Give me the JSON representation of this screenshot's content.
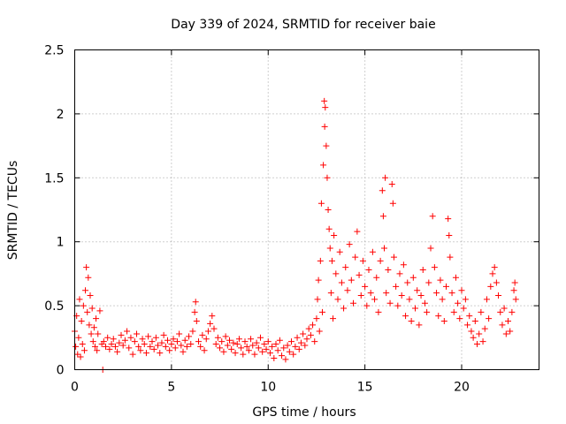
{
  "chart_data": {
    "type": "scatter",
    "title": "Day 339 of 2024, SRMTID for receiver baie",
    "xlabel": "GPS time / hours",
    "ylabel": "SRMTID / TECUs",
    "xlim": [
      0,
      24
    ],
    "ylim": [
      0,
      2.5
    ],
    "xticks": [
      0,
      5,
      10,
      15,
      20
    ],
    "yticks": [
      0,
      0.5,
      1,
      1.5,
      2,
      2.5
    ],
    "xtick_labels": [
      "0",
      "5",
      "10",
      "15",
      "20"
    ],
    "ytick_labels": [
      "0",
      "0.5",
      "1",
      "1.5",
      "2",
      "2.5"
    ],
    "grid": true,
    "marker": "+",
    "series": [
      {
        "name": "SRMTID",
        "color": "#ff0000",
        "points": [
          [
            0.0,
            0.3
          ],
          [
            0.05,
            0.18
          ],
          [
            0.1,
            0.42
          ],
          [
            0.15,
            0.12
          ],
          [
            0.2,
            0.25
          ],
          [
            0.25,
            0.55
          ],
          [
            0.3,
            0.1
          ],
          [
            0.35,
            0.38
          ],
          [
            0.4,
            0.2
          ],
          [
            0.45,
            0.5
          ],
          [
            0.5,
            0.15
          ],
          [
            0.55,
            0.62
          ],
          [
            0.6,
            0.8
          ],
          [
            0.65,
            0.45
          ],
          [
            0.7,
            0.72
          ],
          [
            0.75,
            0.35
          ],
          [
            0.8,
            0.58
          ],
          [
            0.85,
            0.28
          ],
          [
            0.9,
            0.48
          ],
          [
            0.95,
            0.22
          ],
          [
            1.0,
            0.33
          ],
          [
            1.05,
            0.18
          ],
          [
            1.1,
            0.4
          ],
          [
            1.15,
            0.15
          ],
          [
            1.2,
            0.28
          ],
          [
            1.3,
            0.46
          ],
          [
            1.4,
            0.2
          ],
          [
            1.45,
            0.0
          ],
          [
            1.5,
            0.22
          ],
          [
            1.6,
            0.18
          ],
          [
            1.7,
            0.25
          ],
          [
            1.8,
            0.16
          ],
          [
            1.9,
            0.2
          ],
          [
            2.0,
            0.24
          ],
          [
            2.1,
            0.18
          ],
          [
            2.2,
            0.14
          ],
          [
            2.3,
            0.21
          ],
          [
            2.4,
            0.27
          ],
          [
            2.5,
            0.19
          ],
          [
            2.6,
            0.23
          ],
          [
            2.7,
            0.3
          ],
          [
            2.8,
            0.17
          ],
          [
            2.9,
            0.25
          ],
          [
            3.0,
            0.12
          ],
          [
            3.1,
            0.22
          ],
          [
            3.2,
            0.28
          ],
          [
            3.3,
            0.18
          ],
          [
            3.4,
            0.15
          ],
          [
            3.5,
            0.24
          ],
          [
            3.6,
            0.2
          ],
          [
            3.7,
            0.13
          ],
          [
            3.8,
            0.26
          ],
          [
            3.9,
            0.18
          ],
          [
            4.0,
            0.22
          ],
          [
            4.1,
            0.16
          ],
          [
            4.2,
            0.25
          ],
          [
            4.3,
            0.19
          ],
          [
            4.4,
            0.13
          ],
          [
            4.5,
            0.21
          ],
          [
            4.6,
            0.27
          ],
          [
            4.7,
            0.18
          ],
          [
            4.8,
            0.23
          ],
          [
            4.9,
            0.15
          ],
          [
            5.0,
            0.2
          ],
          [
            5.1,
            0.24
          ],
          [
            5.2,
            0.17
          ],
          [
            5.3,
            0.22
          ],
          [
            5.4,
            0.28
          ],
          [
            5.5,
            0.19
          ],
          [
            5.6,
            0.14
          ],
          [
            5.7,
            0.23
          ],
          [
            5.8,
            0.18
          ],
          [
            5.9,
            0.26
          ],
          [
            6.0,
            0.2
          ],
          [
            6.1,
            0.3
          ],
          [
            6.2,
            0.45
          ],
          [
            6.25,
            0.53
          ],
          [
            6.3,
            0.38
          ],
          [
            6.4,
            0.22
          ],
          [
            6.5,
            0.18
          ],
          [
            6.6,
            0.27
          ],
          [
            6.7,
            0.15
          ],
          [
            6.8,
            0.24
          ],
          [
            6.9,
            0.3
          ],
          [
            7.0,
            0.36
          ],
          [
            7.1,
            0.42
          ],
          [
            7.2,
            0.32
          ],
          [
            7.3,
            0.2
          ],
          [
            7.4,
            0.25
          ],
          [
            7.5,
            0.17
          ],
          [
            7.6,
            0.22
          ],
          [
            7.7,
            0.14
          ],
          [
            7.8,
            0.26
          ],
          [
            7.9,
            0.19
          ],
          [
            8.0,
            0.23
          ],
          [
            8.1,
            0.16
          ],
          [
            8.2,
            0.21
          ],
          [
            8.3,
            0.13
          ],
          [
            8.4,
            0.2
          ],
          [
            8.5,
            0.24
          ],
          [
            8.6,
            0.17
          ],
          [
            8.7,
            0.12
          ],
          [
            8.8,
            0.22
          ],
          [
            8.9,
            0.18
          ],
          [
            9.0,
            0.15
          ],
          [
            9.1,
            0.24
          ],
          [
            9.2,
            0.19
          ],
          [
            9.3,
            0.12
          ],
          [
            9.4,
            0.21
          ],
          [
            9.5,
            0.17
          ],
          [
            9.6,
            0.25
          ],
          [
            9.7,
            0.14
          ],
          [
            9.8,
            0.2
          ],
          [
            9.9,
            0.16
          ],
          [
            10.0,
            0.22
          ],
          [
            10.1,
            0.13
          ],
          [
            10.2,
            0.18
          ],
          [
            10.3,
            0.09
          ],
          [
            10.4,
            0.2
          ],
          [
            10.5,
            0.15
          ],
          [
            10.6,
            0.23
          ],
          [
            10.7,
            0.11
          ],
          [
            10.8,
            0.17
          ],
          [
            10.9,
            0.08
          ],
          [
            11.0,
            0.19
          ],
          [
            11.1,
            0.14
          ],
          [
            11.2,
            0.22
          ],
          [
            11.3,
            0.12
          ],
          [
            11.4,
            0.18
          ],
          [
            11.5,
            0.25
          ],
          [
            11.6,
            0.16
          ],
          [
            11.7,
            0.21
          ],
          [
            11.8,
            0.28
          ],
          [
            11.9,
            0.19
          ],
          [
            12.0,
            0.24
          ],
          [
            12.1,
            0.32
          ],
          [
            12.2,
            0.27
          ],
          [
            12.3,
            0.35
          ],
          [
            12.4,
            0.22
          ],
          [
            12.5,
            0.4
          ],
          [
            12.55,
            0.55
          ],
          [
            12.6,
            0.7
          ],
          [
            12.65,
            0.3
          ],
          [
            12.7,
            0.85
          ],
          [
            12.75,
            1.3
          ],
          [
            12.8,
            0.45
          ],
          [
            12.85,
            1.6
          ],
          [
            12.9,
            2.1
          ],
          [
            12.92,
            1.9
          ],
          [
            12.95,
            2.05
          ],
          [
            13.0,
            1.75
          ],
          [
            13.05,
            1.5
          ],
          [
            13.1,
            1.25
          ],
          [
            13.15,
            1.1
          ],
          [
            13.2,
            0.95
          ],
          [
            13.25,
            0.6
          ],
          [
            13.3,
            0.85
          ],
          [
            13.35,
            0.4
          ],
          [
            13.4,
            1.05
          ],
          [
            13.5,
            0.75
          ],
          [
            13.6,
            0.55
          ],
          [
            13.7,
            0.92
          ],
          [
            13.8,
            0.68
          ],
          [
            13.9,
            0.48
          ],
          [
            14.0,
            0.8
          ],
          [
            14.1,
            0.62
          ],
          [
            14.2,
            0.98
          ],
          [
            14.3,
            0.7
          ],
          [
            14.4,
            0.52
          ],
          [
            14.5,
            0.88
          ],
          [
            14.6,
            1.08
          ],
          [
            14.7,
            0.74
          ],
          [
            14.8,
            0.58
          ],
          [
            14.9,
            0.85
          ],
          [
            15.0,
            0.65
          ],
          [
            15.1,
            0.5
          ],
          [
            15.2,
            0.78
          ],
          [
            15.3,
            0.6
          ],
          [
            15.4,
            0.92
          ],
          [
            15.5,
            0.55
          ],
          [
            15.6,
            0.72
          ],
          [
            15.7,
            0.45
          ],
          [
            15.8,
            0.85
          ],
          [
            15.9,
            1.4
          ],
          [
            15.95,
            1.2
          ],
          [
            16.0,
            0.95
          ],
          [
            16.05,
            1.5
          ],
          [
            16.1,
            0.6
          ],
          [
            16.2,
            0.78
          ],
          [
            16.3,
            0.52
          ],
          [
            16.4,
            1.45
          ],
          [
            16.45,
            1.3
          ],
          [
            16.5,
            0.88
          ],
          [
            16.6,
            0.65
          ],
          [
            16.7,
            0.5
          ],
          [
            16.8,
            0.75
          ],
          [
            16.9,
            0.58
          ],
          [
            17.0,
            0.82
          ],
          [
            17.1,
            0.42
          ],
          [
            17.2,
            0.68
          ],
          [
            17.3,
            0.55
          ],
          [
            17.4,
            0.38
          ],
          [
            17.5,
            0.72
          ],
          [
            17.6,
            0.48
          ],
          [
            17.7,
            0.62
          ],
          [
            17.8,
            0.35
          ],
          [
            17.9,
            0.58
          ],
          [
            18.0,
            0.78
          ],
          [
            18.1,
            0.52
          ],
          [
            18.2,
            0.45
          ],
          [
            18.3,
            0.68
          ],
          [
            18.4,
            0.95
          ],
          [
            18.5,
            1.2
          ],
          [
            18.6,
            0.8
          ],
          [
            18.7,
            0.6
          ],
          [
            18.8,
            0.42
          ],
          [
            18.9,
            0.7
          ],
          [
            19.0,
            0.55
          ],
          [
            19.1,
            0.38
          ],
          [
            19.2,
            0.65
          ],
          [
            19.3,
            1.18
          ],
          [
            19.35,
            1.05
          ],
          [
            19.4,
            0.88
          ],
          [
            19.5,
            0.6
          ],
          [
            19.6,
            0.45
          ],
          [
            19.7,
            0.72
          ],
          [
            19.8,
            0.52
          ],
          [
            19.9,
            0.4
          ],
          [
            20.0,
            0.62
          ],
          [
            20.1,
            0.48
          ],
          [
            20.2,
            0.55
          ],
          [
            20.3,
            0.35
          ],
          [
            20.4,
            0.42
          ],
          [
            20.5,
            0.3
          ],
          [
            20.6,
            0.25
          ],
          [
            20.7,
            0.38
          ],
          [
            20.8,
            0.2
          ],
          [
            20.9,
            0.28
          ],
          [
            21.0,
            0.45
          ],
          [
            21.1,
            0.22
          ],
          [
            21.2,
            0.32
          ],
          [
            21.3,
            0.55
          ],
          [
            21.4,
            0.4
          ],
          [
            21.5,
            0.65
          ],
          [
            21.6,
            0.75
          ],
          [
            21.7,
            0.8
          ],
          [
            21.8,
            0.68
          ],
          [
            21.9,
            0.58
          ],
          [
            22.0,
            0.45
          ],
          [
            22.1,
            0.35
          ],
          [
            22.2,
            0.48
          ],
          [
            22.3,
            0.28
          ],
          [
            22.4,
            0.38
          ],
          [
            22.5,
            0.3
          ],
          [
            22.6,
            0.45
          ],
          [
            22.7,
            0.62
          ],
          [
            22.75,
            0.68
          ],
          [
            22.8,
            0.55
          ]
        ]
      }
    ]
  }
}
